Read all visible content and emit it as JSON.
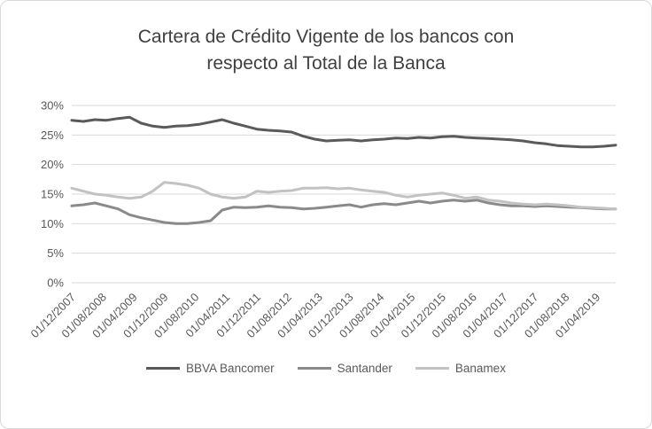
{
  "chart_data": {
    "type": "line",
    "title": "Cartera de Crédito Vigente de los bancos con respecto al Total de la Banca",
    "title_lines": [
      "Cartera de Crédito Vigente de los bancos con",
      "respecto al Total de la Banca"
    ],
    "ylabel": "",
    "xlabel": "",
    "ylim": [
      0,
      30
    ],
    "y_ticks": [
      0,
      5,
      10,
      15,
      20,
      25,
      30
    ],
    "y_tick_suffix": "%",
    "grid": true,
    "legend_position": "bottom",
    "grid_color": "#d9d9d9",
    "axis_label_color": "#595959",
    "title_color": "#3f3f3f",
    "x_tick_labels": [
      "01/12/2007",
      "01/08/2008",
      "01/04/2009",
      "01/12/2009",
      "01/08/2010",
      "01/04/2011",
      "01/12/2011",
      "01/08/2012",
      "01/04/2013",
      "01/12/2013",
      "01/08/2014",
      "01/04/2015",
      "01/12/2015",
      "01/08/2016",
      "01/04/2017",
      "01/12/2017",
      "01/08/2018",
      "01/04/2019"
    ],
    "months_per_tick": 8,
    "months_per_sample": 3,
    "total_months": 141,
    "series": [
      {
        "name": "BBVA Bancomer",
        "color": "#5a5a5a",
        "values": [
          27.5,
          27.3,
          27.6,
          27.5,
          27.8,
          28.0,
          27.0,
          26.5,
          26.3,
          26.5,
          26.6,
          26.8,
          27.2,
          27.6,
          27.0,
          26.5,
          26.0,
          25.8,
          25.7,
          25.5,
          24.8,
          24.3,
          24.0,
          24.1,
          24.2,
          24.0,
          24.2,
          24.3,
          24.5,
          24.4,
          24.6,
          24.5,
          24.7,
          24.8,
          24.6,
          24.5,
          24.4,
          24.3,
          24.2,
          24.0,
          23.7,
          23.5,
          23.2,
          23.1,
          23.0,
          23.0,
          23.1,
          23.3
        ]
      },
      {
        "name": "Santander",
        "color": "#8a8a8a",
        "values": [
          13.0,
          13.2,
          13.5,
          13.0,
          12.5,
          11.5,
          11.0,
          10.6,
          10.2,
          10.0,
          10.0,
          10.2,
          10.5,
          12.3,
          12.8,
          12.7,
          12.8,
          13.0,
          12.8,
          12.7,
          12.5,
          12.6,
          12.8,
          13.0,
          13.2,
          12.8,
          13.2,
          13.4,
          13.2,
          13.5,
          13.8,
          13.5,
          13.8,
          14.0,
          13.8,
          14.0,
          13.5,
          13.2,
          13.0,
          13.0,
          12.9,
          13.0,
          12.9,
          12.8,
          12.7,
          12.6,
          12.5,
          12.5
        ]
      },
      {
        "name": "Banamex",
        "color": "#c2c2c2",
        "values": [
          16.0,
          15.5,
          15.0,
          14.8,
          14.5,
          14.3,
          14.5,
          15.5,
          17.0,
          16.8,
          16.5,
          16.0,
          15.0,
          14.5,
          14.3,
          14.5,
          15.5,
          15.3,
          15.5,
          15.6,
          16.0,
          16.0,
          16.1,
          15.9,
          16.0,
          15.7,
          15.5,
          15.3,
          14.8,
          14.5,
          14.8,
          15.0,
          15.2,
          14.8,
          14.3,
          14.5,
          14.0,
          13.8,
          13.5,
          13.3,
          13.2,
          13.3,
          13.2,
          13.0,
          12.8,
          12.7,
          12.6,
          12.5
        ]
      }
    ]
  }
}
